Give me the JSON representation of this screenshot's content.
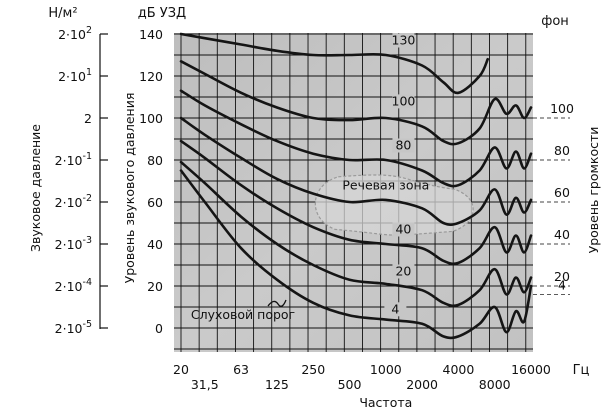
{
  "chart_data": {
    "type": "line",
    "units": {
      "pressure": "Н/м²",
      "db": "дБ УЗД",
      "phon": "фон",
      "freq": "Гц"
    },
    "ylabel_left": "Звуковое давление",
    "ylabel": "Уровень звукового давления",
    "ylabel_right": "Уровень громкости",
    "xlabel": "Частота",
    "ylim": [
      -15,
      140
    ],
    "x_ticks_top": [
      "20",
      "63",
      "250",
      "1000",
      "4000",
      "16000"
    ],
    "x_ticks_bottom": [
      "31,5",
      "125",
      "500",
      "2000",
      "8000"
    ],
    "y_ticks": [
      0,
      20,
      40,
      60,
      80,
      100,
      120,
      140
    ],
    "pressure_ticks": [
      {
        "base": "2·10",
        "exp": "2",
        "db": 140
      },
      {
        "base": "2·10",
        "exp": "1",
        "db": 120
      },
      {
        "base": "2",
        "exp": "",
        "db": 100
      },
      {
        "base": "2·10",
        "exp": "-1",
        "db": 80
      },
      {
        "base": "2·10",
        "exp": "-2",
        "db": 60
      },
      {
        "base": "2·10",
        "exp": "-3",
        "db": 40
      },
      {
        "base": "2·10",
        "exp": "-4",
        "db": 20
      },
      {
        "base": "2·10",
        "exp": "-5",
        "db": 0
      }
    ],
    "phon_ticks": [
      {
        "label": "100",
        "db": 100
      },
      {
        "label": "80",
        "db": 80
      },
      {
        "label": "60",
        "db": 60
      },
      {
        "label": "40",
        "db": 40
      },
      {
        "label": "20",
        "db": 20
      },
      {
        "label": "4",
        "db": 16
      }
    ],
    "speech_zone_label": "Речевая зона",
    "threshold_label": "Слуховой порог",
    "series": [
      {
        "name": "130",
        "x": [
          20,
          31.5,
          63,
          125,
          250,
          500,
          1000,
          2000,
          3000,
          4000,
          6000,
          7000
        ],
        "y": [
          140,
          138,
          135,
          132,
          130,
          130,
          130,
          125,
          117,
          112,
          120,
          128
        ]
      },
      {
        "name": "100",
        "x": [
          20,
          31.5,
          63,
          125,
          250,
          500,
          1000,
          2000,
          3000,
          4000,
          6000,
          8000,
          10000,
          12000,
          14000,
          16000
        ],
        "y": [
          127,
          121,
          112,
          105,
          100,
          99,
          100,
          96,
          89,
          88,
          95,
          109,
          102,
          106,
          100,
          105
        ]
      },
      {
        "name": "80",
        "x": [
          20,
          31.5,
          63,
          125,
          250,
          500,
          1000,
          2000,
          3000,
          4000,
          6000,
          8000,
          10000,
          12000,
          14000,
          16000
        ],
        "y": [
          113,
          106,
          97,
          89,
          83,
          80,
          80,
          75,
          69,
          68,
          75,
          86,
          76,
          84,
          76,
          83
        ]
      },
      {
        "name": "60",
        "x": [
          20,
          31.5,
          63,
          125,
          250,
          500,
          1000,
          2000,
          3000,
          4000,
          6000,
          8000,
          10000,
          12000,
          14000,
          16000
        ],
        "y": [
          100,
          92,
          81,
          71,
          64,
          60,
          61,
          57,
          50,
          50,
          56,
          66,
          54,
          62,
          55,
          61
        ]
      },
      {
        "name": "40",
        "x": [
          20,
          31.5,
          63,
          125,
          250,
          500,
          1000,
          2000,
          3000,
          4000,
          6000,
          8000,
          10000,
          12000,
          14000,
          16000
        ],
        "y": [
          89,
          81,
          68,
          57,
          48,
          42,
          40,
          38,
          32,
          31,
          38,
          48,
          36,
          44,
          36,
          44
        ]
      },
      {
        "name": "20",
        "x": [
          20,
          31.5,
          63,
          125,
          250,
          500,
          1000,
          2000,
          3000,
          4000,
          6000,
          8000,
          10000,
          12000,
          14000,
          16000
        ],
        "y": [
          79,
          69,
          53,
          40,
          30,
          23,
          21,
          18,
          12,
          11,
          18,
          28,
          16,
          24,
          17,
          24
        ]
      },
      {
        "name": "4",
        "x": [
          20,
          31.5,
          63,
          125,
          250,
          500,
          1000,
          2000,
          3000,
          4000,
          6000,
          8000,
          10000,
          12000,
          14000,
          16000
        ],
        "y": [
          75,
          60,
          38,
          23,
          12,
          6,
          4,
          2,
          -4,
          -4,
          2,
          10,
          -2,
          8,
          3,
          20
        ]
      }
    ],
    "grid": true
  }
}
